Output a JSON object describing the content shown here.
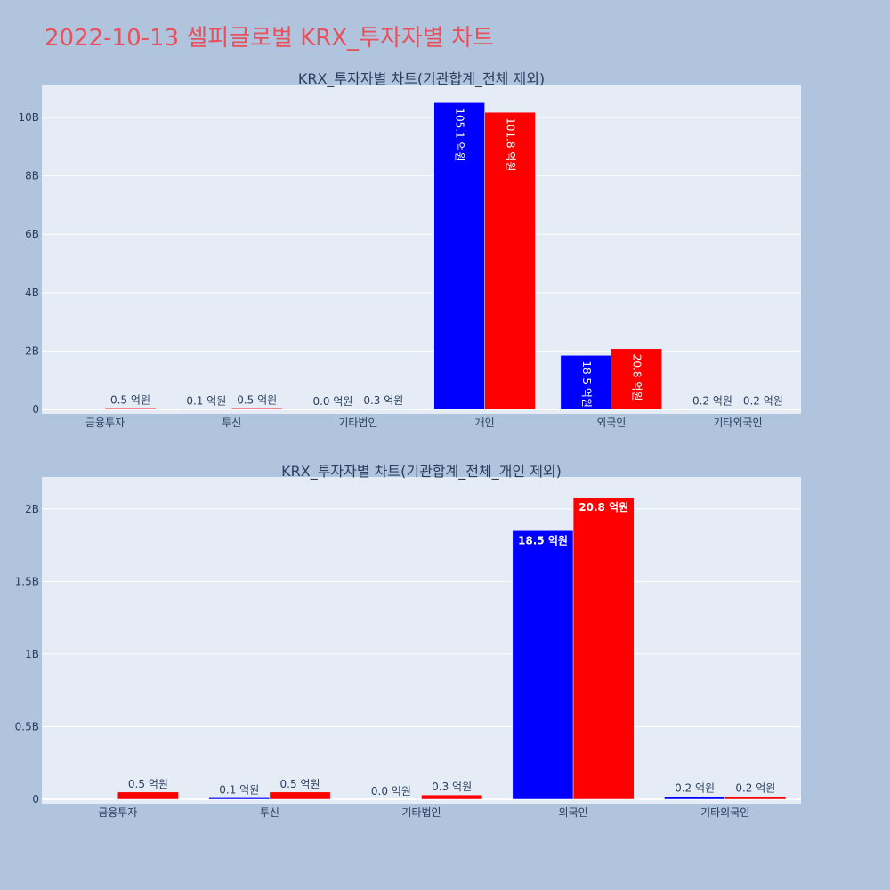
{
  "page": {
    "title": "2022-10-13 셀피글로벌 KRX_투자자별 차트"
  },
  "colors": {
    "buy": "#0000ff",
    "sell": "#ff0000",
    "plot_bg": "#e5ecf6",
    "page_bg": "#b0c4de",
    "title": "#e8505b"
  },
  "chart_data": [
    {
      "type": "bar",
      "title": "KRX_투자자별 차트(기관합계_전체 제외)",
      "categories": [
        "금융투자",
        "투신",
        "기타법인",
        "개인",
        "외국인",
        "기타외국인"
      ],
      "yticks": [
        0,
        2000000000,
        4000000000,
        6000000000,
        8000000000,
        10000000000
      ],
      "ytick_labels": [
        "0",
        "2B",
        "4B",
        "6B",
        "8B",
        "10B"
      ],
      "ylim": [
        0,
        11100000000
      ],
      "grid": true,
      "series": [
        {
          "color": "#0000ff",
          "values": [
            0,
            10000000,
            0,
            10510000000,
            1850000000,
            20000000
          ],
          "labels": [
            "",
            "0.1 억원",
            "0.0 억원",
            "105.1 억원",
            "18.5 억원",
            "0.2 억원"
          ]
        },
        {
          "color": "#ff0000",
          "values": [
            50000000,
            50000000,
            30000000,
            10180000000,
            2080000000,
            20000000
          ],
          "labels": [
            "0.5 억원",
            "0.5 억원",
            "0.3 억원",
            "101.8 억원",
            "20.8 억원",
            "0.2 억원"
          ]
        }
      ]
    },
    {
      "type": "bar",
      "title": "KRX_투자자별 차트(기관합계_전체_개인 제외)",
      "categories": [
        "금융투자",
        "투신",
        "기타법인",
        "외국인",
        "기타외국인"
      ],
      "yticks": [
        0,
        500000000,
        1000000000,
        1500000000,
        2000000000
      ],
      "ytick_labels": [
        "0",
        "0.5B",
        "1B",
        "1.5B",
        "2B"
      ],
      "ylim": [
        0,
        2220000000
      ],
      "grid": true,
      "series": [
        {
          "color": "#0000ff",
          "values": [
            0,
            10000000,
            0,
            1850000000,
            20000000
          ],
          "labels": [
            "",
            "0.1 억원",
            "0.0 억원",
            "18.5 억원",
            "0.2 억원"
          ]
        },
        {
          "color": "#ff0000",
          "values": [
            50000000,
            50000000,
            30000000,
            2080000000,
            20000000
          ],
          "labels": [
            "0.5 억원",
            "0.5 억원",
            "0.3 억원",
            "20.8 억원",
            "0.2 억원"
          ]
        }
      ]
    }
  ]
}
